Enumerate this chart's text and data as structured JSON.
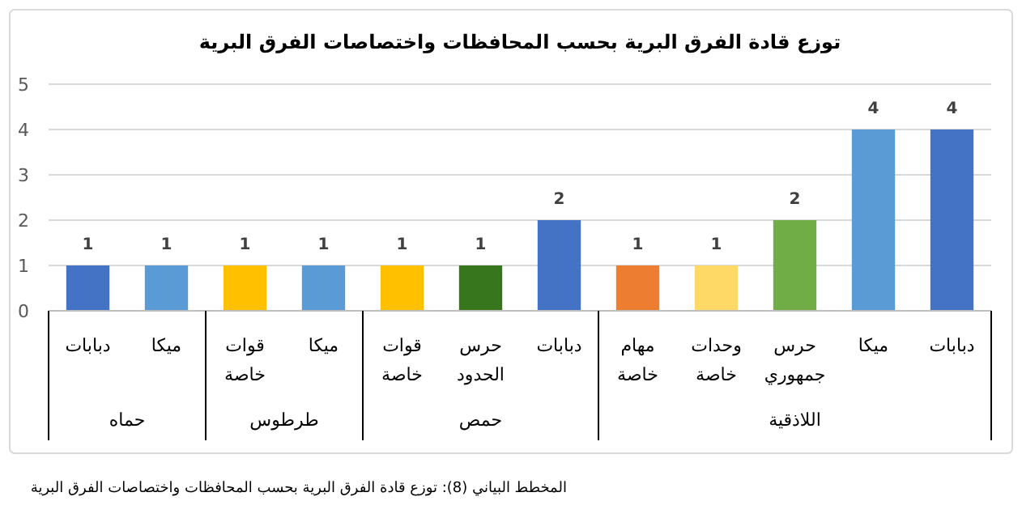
{
  "chart_data": {
    "type": "bar",
    "title": "توزع قادة الفرق البرية بحسب المحافظات واختصاصات الفرق البرية",
    "categories": [
      "دبابات",
      "ميكا",
      "قوات خاصة",
      "ميكا",
      "قوات خاصة",
      "حرس الحدود",
      "دبابات",
      "مهام خاصة",
      "وحدات خاصة",
      "حرس جمهوري",
      "ميكا",
      "دبابات"
    ],
    "values": [
      1,
      1,
      1,
      1,
      1,
      1,
      2,
      1,
      1,
      2,
      4,
      4
    ],
    "colors": [
      "#4472c4",
      "#5b9bd5",
      "#ffc000",
      "#5b9bd5",
      "#ffc000",
      "#38761d",
      "#4472c4",
      "#ed7d31",
      "#ffd966",
      "#70ad47",
      "#5b9bd5",
      "#4472c4"
    ],
    "ylim": [
      0,
      5
    ],
    "yticks": [
      0,
      1,
      2,
      3,
      4,
      5
    ],
    "grid": "y",
    "data_labels": true,
    "annotations": [
      "حماه",
      "طرطوس",
      "حمص",
      "اللاذقية",
      "المخطط البياني (8): توزع قادة الفرق البرية بحسب المحافظات واختصاصات الفرق البرية"
    ]
  }
}
